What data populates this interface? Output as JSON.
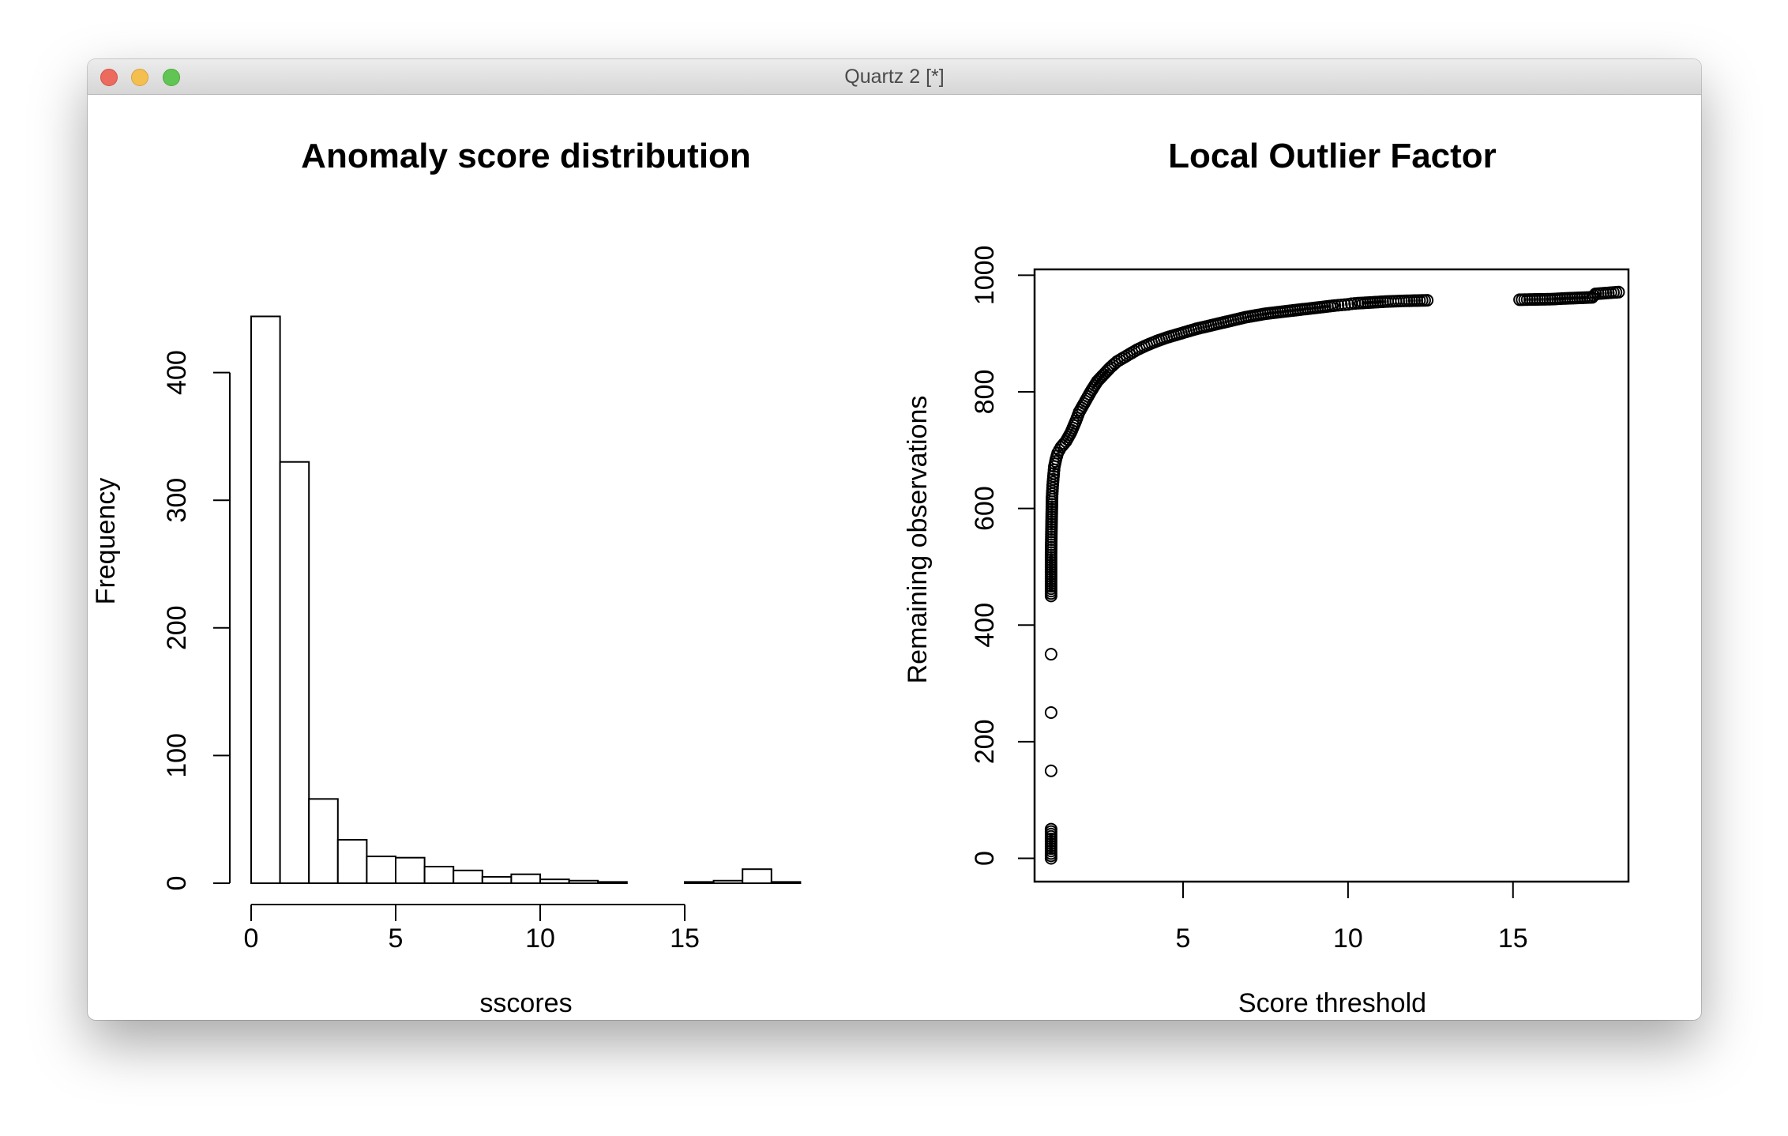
{
  "window": {
    "title": "Quartz 2 [*]"
  },
  "chart_data": [
    {
      "type": "bar",
      "title": "Anomaly score distribution",
      "xlabel": "sscores",
      "ylabel": "Frequency",
      "bin_width": 1,
      "bin_starts": [
        0,
        1,
        2,
        3,
        4,
        5,
        6,
        7,
        8,
        9,
        10,
        11,
        12,
        13,
        14,
        15,
        16,
        17,
        18
      ],
      "values": [
        444,
        330,
        66,
        34,
        21,
        20,
        13,
        10,
        5,
        7,
        3,
        2,
        1,
        0,
        0,
        1,
        2,
        11,
        1
      ],
      "xlim": [
        0,
        19
      ],
      "ylim": [
        0,
        444
      ],
      "x_ticks": [
        0,
        5,
        10,
        15
      ],
      "y_ticks": [
        0,
        100,
        200,
        300,
        400
      ]
    },
    {
      "type": "scatter",
      "title": "Local Outlier Factor",
      "xlabel": "Score threshold",
      "ylabel": "Remaining observations",
      "xlim": [
        0.5,
        18.5
      ],
      "ylim": [
        -40,
        1010
      ],
      "x_ticks": [
        5,
        10,
        15
      ],
      "y_ticks": [
        0,
        200,
        400,
        600,
        800,
        1000
      ],
      "grid": false,
      "x": [
        1.0,
        1.0,
        1.0,
        1.0,
        1.0,
        1.0,
        1.0,
        1.01,
        1.02,
        1.03,
        1.05,
        1.08,
        1.1,
        1.15,
        1.2,
        1.3,
        1.45,
        1.6,
        1.75,
        1.85,
        2.0,
        2.2,
        2.4,
        2.6,
        2.8,
        3.0,
        3.3,
        3.6,
        3.9,
        4.2,
        4.5,
        4.8,
        5.1,
        5.4,
        5.7,
        6.0,
        6.3,
        6.6,
        6.9,
        7.2,
        7.5,
        7.8,
        8.1,
        8.4,
        8.7,
        9.0,
        9.3,
        9.6,
        9.8,
        10.0,
        10.1,
        10.3,
        11.2,
        11.7,
        12.4,
        15.2,
        16.2,
        16.5,
        17.4,
        17.45,
        17.5,
        18.2
      ],
      "y": [
        0,
        50,
        150,
        250,
        350,
        450,
        520,
        560,
        590,
        620,
        640,
        660,
        672,
        685,
        695,
        705,
        715,
        730,
        750,
        765,
        780,
        800,
        818,
        830,
        842,
        852,
        862,
        872,
        880,
        887,
        893,
        898,
        903,
        908,
        912,
        916,
        920,
        924,
        928,
        931,
        934,
        936,
        938,
        940,
        942,
        944,
        946,
        948,
        949,
        950,
        951,
        952,
        955,
        956,
        957,
        958,
        959,
        960,
        962,
        965,
        968,
        971
      ]
    }
  ]
}
